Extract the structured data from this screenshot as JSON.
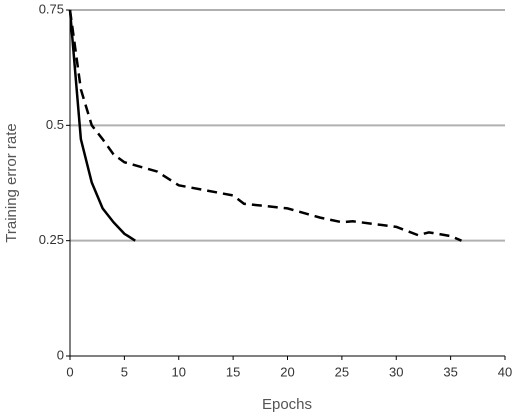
{
  "chart_data": {
    "type": "line",
    "x_label": "Epochs",
    "y_label": "Training error rate",
    "series": [
      {
        "color": "#000000",
        "style": "solid",
        "x": [
          0,
          1,
          2,
          3,
          4,
          5,
          6
        ],
        "values": [
          0.75,
          0.47,
          0.376,
          0.32,
          0.29,
          0.265,
          0.25
        ]
      },
      {
        "color": "#000000",
        "style": "dashed",
        "x": [
          0,
          1,
          2,
          3,
          4,
          5,
          8,
          10,
          15,
          16,
          20,
          23,
          25,
          26,
          30,
          32,
          33,
          35,
          36
        ],
        "values": [
          0.75,
          0.578,
          0.5,
          0.47,
          0.437,
          0.42,
          0.4,
          0.37,
          0.348,
          0.33,
          0.32,
          0.3,
          0.29,
          0.292,
          0.28,
          0.262,
          0.268,
          0.26,
          0.25
        ]
      }
    ],
    "xlim": [
      0,
      40
    ],
    "xticks": [
      0,
      5,
      10,
      15,
      20,
      25,
      30,
      35,
      40
    ],
    "ylim": [
      0,
      0.75
    ],
    "yticks": [
      0,
      0.25,
      0.5,
      0.75
    ],
    "grid": true,
    "grid_color": "#b0b0b0"
  }
}
